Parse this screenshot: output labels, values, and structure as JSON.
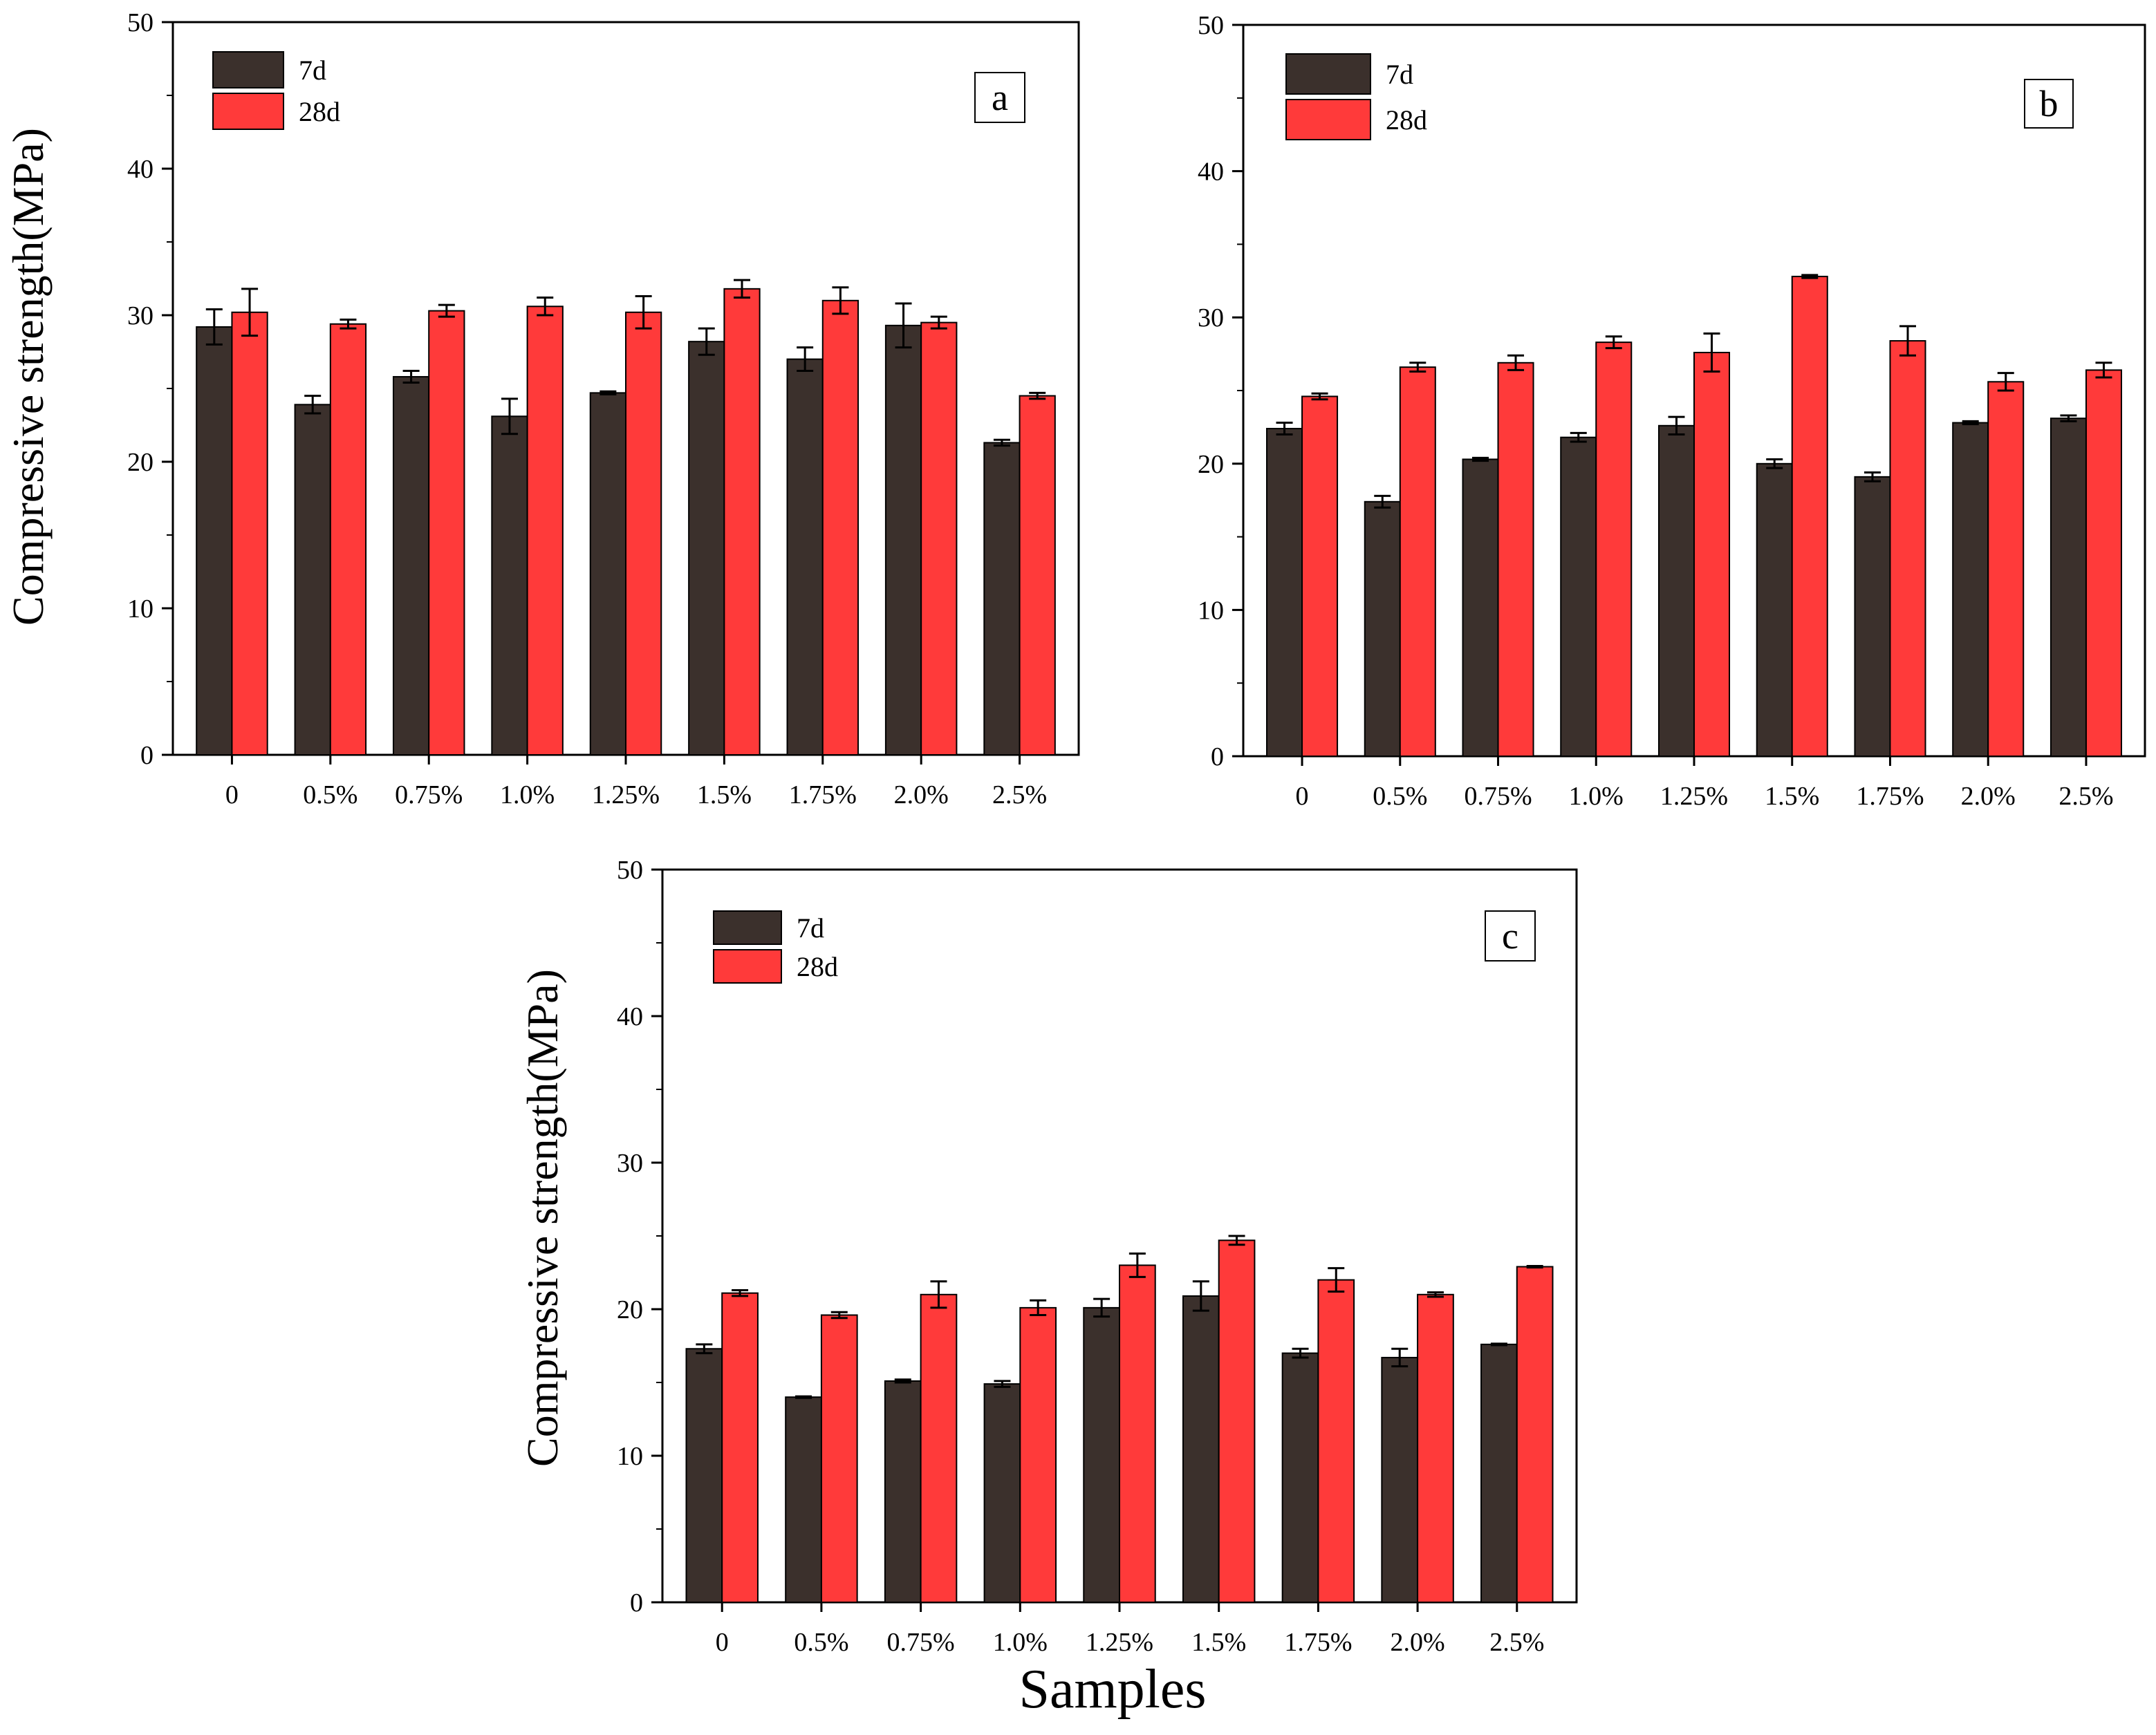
{
  "colors": {
    "7d": "#3b302c",
    "28d": "#ff3a3a",
    "axis": "#000000"
  },
  "chart_data": [
    {
      "type": "bar",
      "panel_label": "a",
      "ylabel": "Compressive strength(MPa)",
      "xlabel": "",
      "ylim": [
        0,
        50
      ],
      "yticks": [
        "0",
        "10",
        "20",
        "30",
        "40",
        "50"
      ],
      "categories": [
        "0",
        "0.5%",
        "0.75%",
        "1.0%",
        "1.25%",
        "1.5%",
        "1.75%",
        "2.0%",
        "2.5%"
      ],
      "legend_position": "top-left",
      "series": [
        {
          "name": "7d",
          "values": [
            29.2,
            23.9,
            25.8,
            23.1,
            24.7,
            28.2,
            27.0,
            29.3,
            21.3
          ],
          "errors": [
            1.2,
            0.6,
            0.4,
            1.2,
            0.1,
            0.9,
            0.8,
            1.5,
            0.2
          ]
        },
        {
          "name": "28d",
          "values": [
            30.2,
            29.4,
            30.3,
            30.6,
            30.2,
            31.8,
            31.0,
            29.5,
            24.5
          ],
          "errors": [
            1.6,
            0.3,
            0.4,
            0.6,
            1.1,
            0.6,
            0.9,
            0.4,
            0.2
          ]
        }
      ]
    },
    {
      "type": "bar",
      "panel_label": "b",
      "ylabel": "",
      "xlabel": "",
      "ylim": [
        0,
        50
      ],
      "yticks": [
        "0",
        "10",
        "20",
        "30",
        "40",
        "50"
      ],
      "categories": [
        "0",
        "0.5%",
        "0.75%",
        "1.0%",
        "1.25%",
        "1.5%",
        "1.75%",
        "2.0%",
        "2.5%"
      ],
      "legend_position": "top-left",
      "series": [
        {
          "name": "7d",
          "values": [
            22.4,
            17.4,
            20.3,
            21.8,
            22.6,
            20.0,
            19.1,
            22.8,
            23.1
          ],
          "errors": [
            0.4,
            0.4,
            0.1,
            0.3,
            0.6,
            0.3,
            0.3,
            0.1,
            0.2
          ]
        },
        {
          "name": "28d",
          "values": [
            24.6,
            26.6,
            26.9,
            28.3,
            27.6,
            32.8,
            28.4,
            25.6,
            26.4
          ],
          "errors": [
            0.2,
            0.3,
            0.5,
            0.4,
            1.3,
            0.1,
            1.0,
            0.6,
            0.5
          ]
        }
      ]
    },
    {
      "type": "bar",
      "panel_label": "c",
      "ylabel": "Compressive strength(MPa)",
      "xlabel": "Samples",
      "ylim": [
        0,
        50
      ],
      "yticks": [
        "0",
        "10",
        "20",
        "30",
        "40",
        "50"
      ],
      "categories": [
        "0",
        "0.5%",
        "0.75%",
        "1.0%",
        "1.25%",
        "1.5%",
        "1.75%",
        "2.0%",
        "2.5%"
      ],
      "legend_position": "top-left",
      "series": [
        {
          "name": "7d",
          "values": [
            17.3,
            14.0,
            15.1,
            14.9,
            20.1,
            20.9,
            17.0,
            16.7,
            17.6
          ],
          "errors": [
            0.3,
            0.05,
            0.1,
            0.2,
            0.6,
            1.0,
            0.3,
            0.6,
            0.05
          ]
        },
        {
          "name": "28d",
          "values": [
            21.1,
            19.6,
            21.0,
            20.1,
            23.0,
            24.7,
            22.0,
            21.0,
            22.9
          ],
          "errors": [
            0.2,
            0.2,
            0.9,
            0.5,
            0.8,
            0.3,
            0.8,
            0.15,
            0.05
          ]
        }
      ]
    }
  ]
}
